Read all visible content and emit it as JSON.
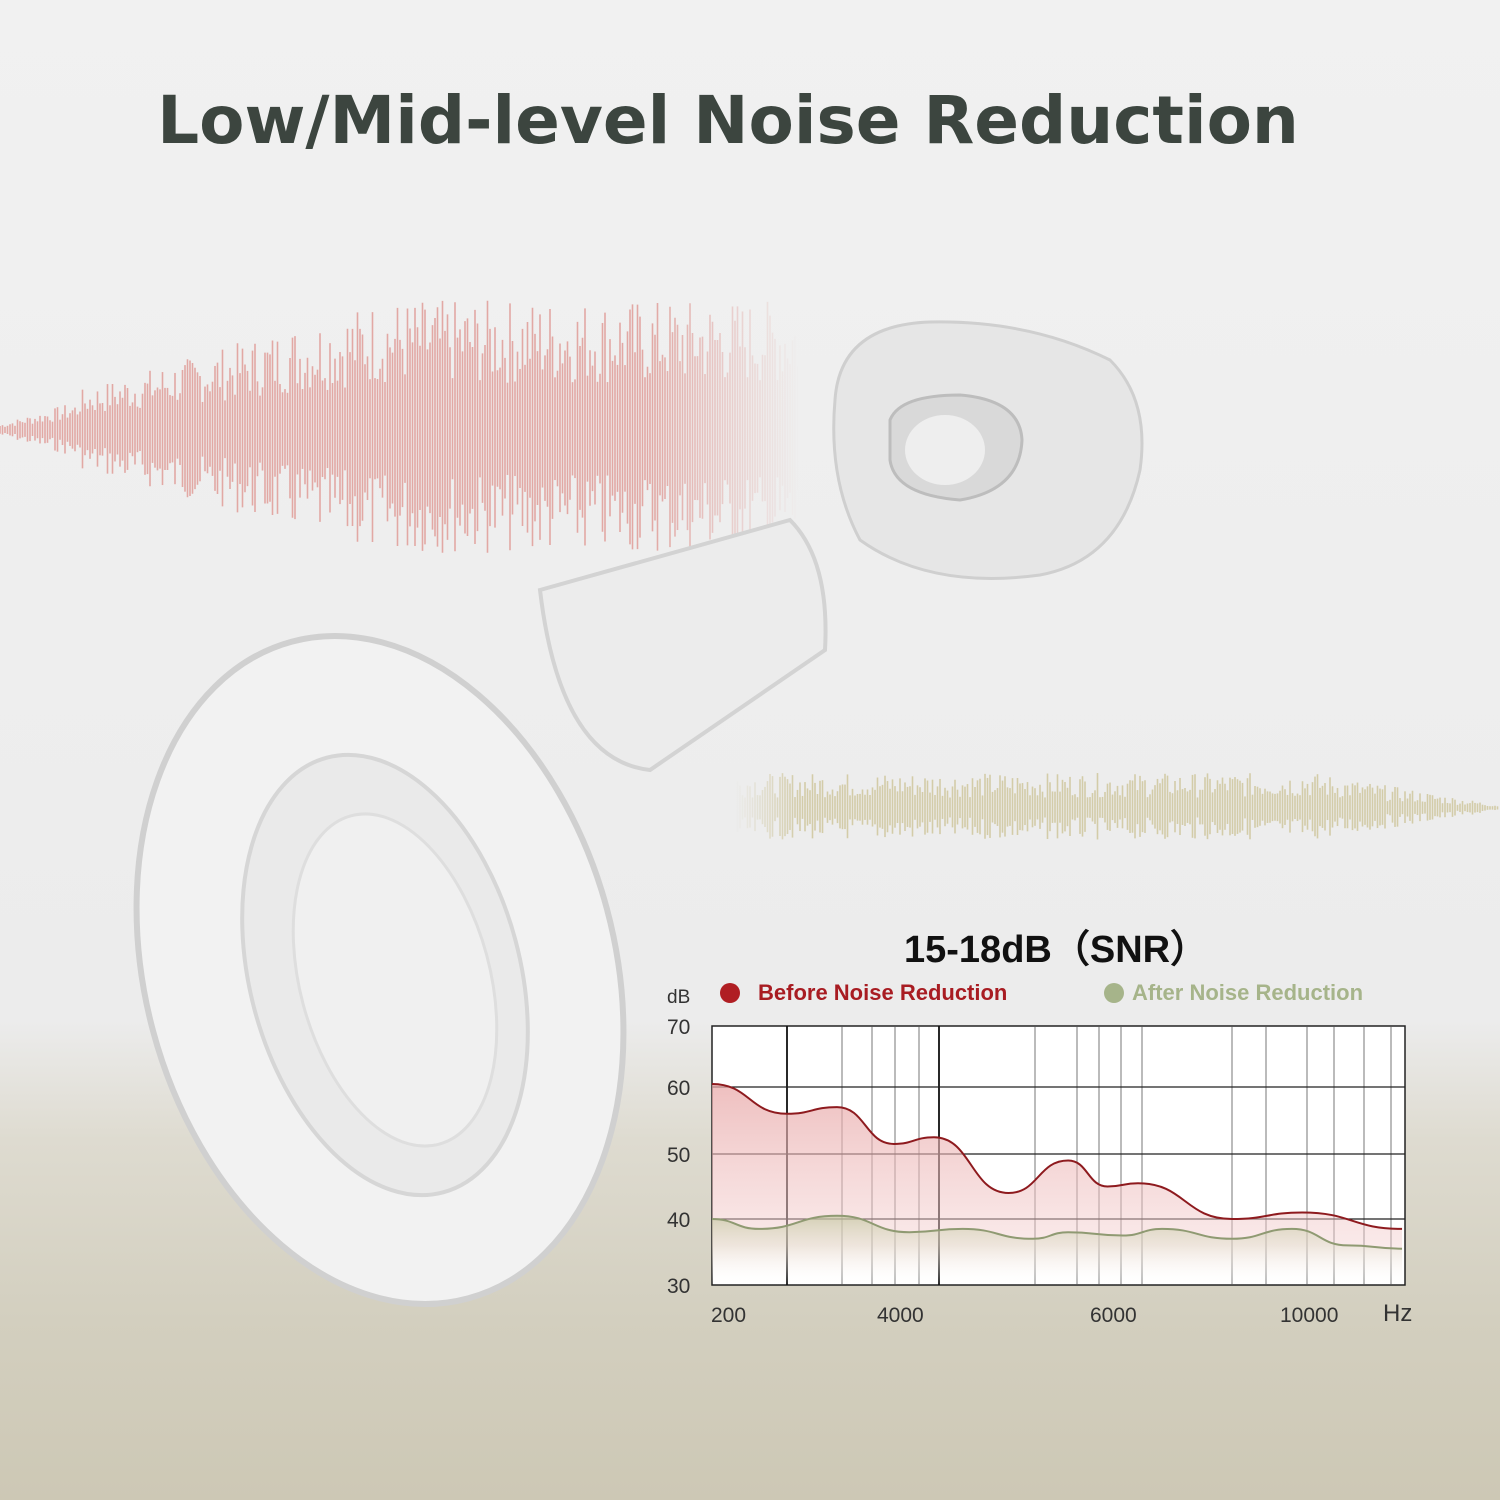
{
  "title": "Low/Mid-level Noise Reduction",
  "colors": {
    "title": "#3c453f",
    "before": "#b01e23",
    "after": "#a6b48a",
    "before_wave": "#e2a8a4",
    "after_wave": "#d3cca8"
  },
  "chart_data": {
    "type": "area",
    "title": "15-18dB（SNR）",
    "ylabel": "dB",
    "xlabel": "Hz",
    "ylim": [
      30,
      70
    ],
    "yticks": [
      30,
      40,
      50,
      60,
      70
    ],
    "xticks": [
      200,
      4000,
      6000,
      10000
    ],
    "grid": true,
    "legend_placement": "top",
    "series": [
      {
        "name": "Before Noise Reduction",
        "color": "#b01e23",
        "x": [
          200,
          1700,
          2700,
          3840,
          4300,
          5000,
          5560,
          5930,
          6470,
          8390,
          9820,
          11840
        ],
        "y": [
          60.5,
          56,
          57,
          51.5,
          52.5,
          44,
          49,
          45,
          45.5,
          40,
          41,
          38.5
        ]
      },
      {
        "name": "After Noise Reduction",
        "color": "#a6b48a",
        "x": [
          200,
          1140,
          2700,
          4070,
          4570,
          5230,
          5560,
          6160,
          6960,
          8390,
          9610,
          10740,
          11840
        ],
        "y": [
          40,
          38.5,
          40.5,
          38,
          38.5,
          37,
          38,
          37.5,
          38.5,
          37,
          38.5,
          36,
          35.5
        ]
      }
    ]
  }
}
